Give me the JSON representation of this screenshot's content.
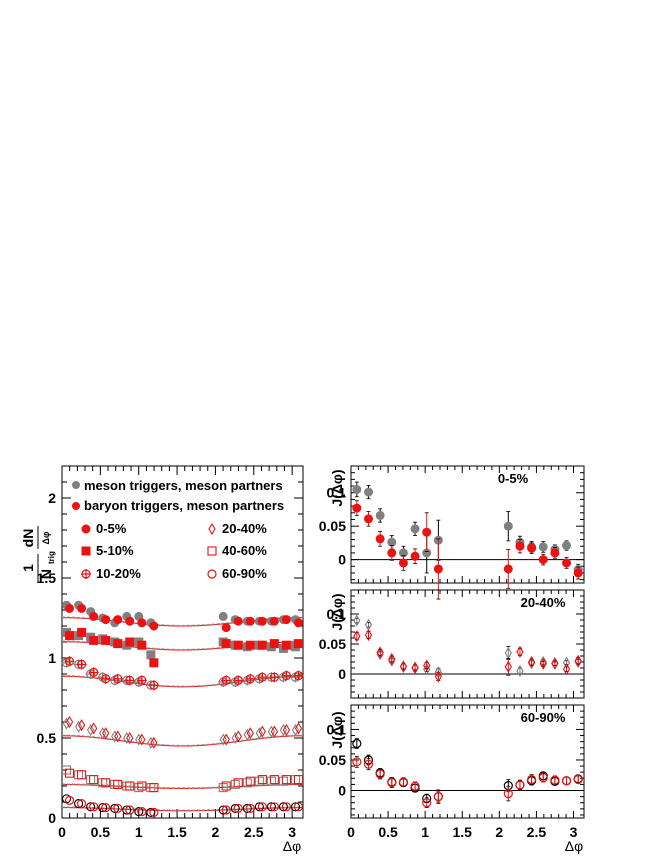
{
  "colors": {
    "red": "#ee1111",
    "gray": "#808080",
    "black": "#000000",
    "curve_red": "#e02020",
    "curve_gray": "#999999"
  },
  "chart_data": [
    {
      "id": "left",
      "type": "scatter",
      "title": "",
      "xlabel": "Δφ",
      "ylabel": "1/N_trig dN/dΔφ",
      "ylabel_parts": {
        "one": "1",
        "N": "N",
        "trig": "trig",
        "dN": "dN",
        "dphi": "Δφ"
      },
      "xlim": [
        0,
        3.14159
      ],
      "ylim": [
        0,
        2.2
      ],
      "xticks": [
        0,
        0.5,
        1,
        1.5,
        2,
        2.5,
        3
      ],
      "xtick_labels": [
        "0",
        "0.5",
        "1",
        "1.5",
        "2",
        "2.5",
        "3"
      ],
      "yticks": [
        0,
        0.5,
        1,
        1.5,
        2
      ],
      "ytick_labels": [
        "0",
        "0.5",
        "1",
        "1.5",
        "2"
      ],
      "legend_top": [
        {
          "label": "meson triggers, meson partners",
          "color": "#808080",
          "marker": "circle"
        },
        {
          "label": "baryon triggers, meson partners",
          "color": "#ee1111",
          "marker": "circle"
        }
      ],
      "legend_bottom": [
        {
          "label": "0-5%",
          "marker": "circle-filled"
        },
        {
          "label": "5-10%",
          "marker": "square-filled"
        },
        {
          "label": "10-20%",
          "marker": "cross-circle"
        },
        {
          "label": "20-40%",
          "marker": "diamond-open"
        },
        {
          "label": "40-60%",
          "marker": "square-open"
        },
        {
          "label": "60-90%",
          "marker": "circle-open"
        }
      ],
      "x": [
        0.0785,
        0.236,
        0.393,
        0.55,
        0.707,
        0.864,
        1.021,
        1.178,
        2.121,
        2.278,
        2.435,
        2.592,
        2.749,
        2.906,
        3.063
      ],
      "series": [
        {
          "name": "0-5%",
          "marker": "circle-filled",
          "baryon": [
            1.31,
            1.31,
            1.26,
            1.24,
            1.24,
            1.23,
            1.22,
            1.2,
            1.19,
            1.23,
            1.23,
            1.23,
            1.23,
            1.24,
            1.22
          ],
          "meson": [
            1.33,
            1.33,
            1.29,
            1.25,
            1.22,
            1.26,
            1.26,
            1.22,
            1.26,
            1.24,
            1.23,
            1.23,
            1.23,
            1.24,
            1.24
          ],
          "curve": {
            "base": 1.2,
            "amp": 0.026,
            "shift": 0.004
          }
        },
        {
          "name": "5-10%",
          "marker": "square-filled",
          "baryon": [
            1.14,
            1.16,
            1.11,
            1.11,
            1.09,
            1.1,
            1.08,
            0.97,
            1.09,
            1.08,
            1.08,
            1.08,
            1.09,
            1.08,
            1.09
          ],
          "meson": [
            1.16,
            1.14,
            1.13,
            1.12,
            1.1,
            1.08,
            1.1,
            1.02,
            1.1,
            1.08,
            1.07,
            1.08,
            1.07,
            1.06,
            1.07
          ],
          "curve": {
            "base": 1.05,
            "amp": 0.026,
            "shift": 0.004
          }
        },
        {
          "name": "10-20%",
          "marker": "cross-circle",
          "baryon": [
            0.98,
            0.96,
            0.91,
            0.87,
            0.87,
            0.86,
            0.86,
            0.83,
            0.86,
            0.86,
            0.87,
            0.88,
            0.88,
            0.89,
            0.89
          ],
          "meson": [
            0.97,
            0.96,
            0.9,
            0.88,
            0.86,
            0.86,
            0.85,
            0.83,
            0.85,
            0.85,
            0.86,
            0.87,
            0.88,
            0.88,
            0.88
          ],
          "curve": {
            "base": 0.82,
            "amp": 0.033,
            "shift": 0.004
          }
        },
        {
          "name": "20-40%",
          "marker": "diamond-open",
          "baryon": [
            0.6,
            0.58,
            0.56,
            0.53,
            0.51,
            0.5,
            0.49,
            0.47,
            0.49,
            0.51,
            0.53,
            0.54,
            0.54,
            0.55,
            0.56
          ],
          "meson": [
            0.59,
            0.57,
            0.55,
            0.53,
            0.51,
            0.5,
            0.49,
            0.47,
            0.49,
            0.5,
            0.52,
            0.53,
            0.54,
            0.55,
            0.55
          ],
          "curve": {
            "base": 0.45,
            "amp": 0.032,
            "shift": 0.004
          }
        },
        {
          "name": "40-60%",
          "marker": "square-open",
          "baryon": [
            0.28,
            0.27,
            0.24,
            0.22,
            0.21,
            0.2,
            0.2,
            0.19,
            0.2,
            0.22,
            0.23,
            0.24,
            0.24,
            0.24,
            0.24
          ],
          "meson": [
            0.3,
            0.27,
            0.24,
            0.22,
            0.21,
            0.2,
            0.19,
            0.19,
            0.19,
            0.21,
            0.22,
            0.23,
            0.23,
            0.23,
            0.24
          ],
          "curve": {
            "base": 0.185,
            "amp": 0.012,
            "shift": 0.004
          }
        },
        {
          "name": "60-90%",
          "marker": "circle-open",
          "baryon": [
            0.11,
            0.09,
            0.07,
            0.065,
            0.06,
            0.05,
            0.04,
            0.035,
            0.05,
            0.06,
            0.06,
            0.07,
            0.07,
            0.07,
            0.07
          ],
          "meson": [
            0.12,
            0.09,
            0.07,
            0.065,
            0.06,
            0.05,
            0.04,
            0.035,
            0.05,
            0.06,
            0.06,
            0.07,
            0.07,
            0.07,
            0.07
          ],
          "curve": {
            "base": 0.045,
            "amp": 0.01,
            "shift": 0.004
          }
        }
      ]
    },
    {
      "id": "right-top",
      "type": "scatter",
      "panel_label": "0-5%",
      "ylabel": "J(Δφ)",
      "xlim": [
        0,
        3.14159
      ],
      "ylim": [
        -0.04,
        0.14
      ],
      "yticks": [
        0,
        0.05,
        0.1
      ],
      "ytick_labels": [
        "0",
        "0.05",
        "0.1"
      ],
      "marker": "filled",
      "x": [
        0.0785,
        0.236,
        0.393,
        0.55,
        0.707,
        0.864,
        1.021,
        1.178,
        2.121,
        2.278,
        2.435,
        2.592,
        2.749,
        2.906,
        3.063
      ],
      "baryon": [
        0.077,
        0.061,
        0.031,
        0.01,
        -0.005,
        0.005,
        0.041,
        -0.014,
        -0.014,
        0.02,
        0.017,
        0.0,
        0.01,
        -0.005,
        -0.02
      ],
      "baryon_err": [
        0.011,
        0.011,
        0.011,
        0.011,
        0.011,
        0.011,
        0.029,
        0.045,
        0.029,
        0.01,
        0.008,
        0.008,
        0.008,
        0.008,
        0.009
      ],
      "meson": [
        0.105,
        0.101,
        0.066,
        0.026,
        0.01,
        0.046,
        0.01,
        0.029,
        0.05,
        0.026,
        0.019,
        0.019,
        0.015,
        0.021,
        -0.015
      ],
      "meson_err": [
        0.011,
        0.01,
        0.01,
        0.01,
        0.01,
        0.01,
        0.03,
        0.03,
        0.022,
        0.009,
        0.008,
        0.008,
        0.007,
        0.007,
        0.008
      ]
    },
    {
      "id": "right-mid",
      "type": "scatter",
      "panel_label": "20-40%",
      "ylabel": "J(Δφ)",
      "xlim": [
        0,
        3.14159
      ],
      "ylim": [
        -0.04,
        0.14
      ],
      "yticks": [
        0,
        0.05,
        0.1
      ],
      "ytick_labels": [
        "0",
        "0.05",
        "0.1"
      ],
      "marker": "diamond",
      "x": [
        0.0785,
        0.236,
        0.393,
        0.55,
        0.707,
        0.864,
        1.021,
        1.178,
        2.121,
        2.278,
        2.435,
        2.592,
        2.749,
        2.906,
        3.063
      ],
      "baryon": [
        0.063,
        0.065,
        0.036,
        0.025,
        0.012,
        0.01,
        0.014,
        -0.004,
        0.012,
        0.037,
        0.02,
        0.017,
        0.018,
        0.008,
        0.022
      ],
      "baryon_err": [
        0.006,
        0.006,
        0.005,
        0.005,
        0.005,
        0.005,
        0.005,
        0.007,
        0.014,
        0.006,
        0.005,
        0.004,
        0.004,
        0.004,
        0.005
      ],
      "meson": [
        0.089,
        0.082,
        0.033,
        0.022,
        0.013,
        0.011,
        0.008,
        0.003,
        0.035,
        0.005,
        0.018,
        0.02,
        0.017,
        0.019,
        0.02
      ],
      "meson_err": [
        0.004,
        0.004,
        0.004,
        0.004,
        0.004,
        0.004,
        0.004,
        0.006,
        0.011,
        0.005,
        0.004,
        0.004,
        0.003,
        0.003,
        0.004
      ]
    },
    {
      "id": "right-bottom",
      "type": "scatter",
      "panel_label": "60-90%",
      "ylabel": "J(Δφ)",
      "xlabel": "Δφ",
      "xlim": [
        0,
        3.14159
      ],
      "ylim": [
        -0.04,
        0.14
      ],
      "xticks": [
        0,
        0.5,
        1,
        1.5,
        2,
        2.5,
        3
      ],
      "xtick_labels": [
        "0",
        "0.5",
        "1",
        "1.5",
        "2",
        "2.5",
        "3"
      ],
      "yticks": [
        0,
        0.05,
        0.1
      ],
      "ytick_labels": [
        "0",
        "0.05",
        "0.1"
      ],
      "marker": "circle-open",
      "x": [
        0.0785,
        0.236,
        0.393,
        0.55,
        0.707,
        0.864,
        1.021,
        1.178,
        2.121,
        2.278,
        2.435,
        2.592,
        2.749,
        2.906,
        3.063
      ],
      "baryon": [
        0.047,
        0.043,
        0.027,
        0.013,
        0.014,
        0.007,
        -0.02,
        -0.01,
        -0.005,
        0.009,
        0.018,
        0.021,
        0.017,
        0.016,
        0.018
      ],
      "baryon_err": [
        0.009,
        0.009,
        0.008,
        0.008,
        0.007,
        0.007,
        0.008,
        0.011,
        0.012,
        0.008,
        0.008,
        0.007,
        0.007,
        0.006,
        0.006
      ],
      "meson": [
        0.077,
        0.05,
        0.029,
        0.014,
        0.013,
        0.004,
        -0.013,
        -0.01,
        0.008,
        0.009,
        0.016,
        0.024,
        0.015,
        0.016,
        0.019
      ],
      "meson_err": [
        0.008,
        0.008,
        0.007,
        0.007,
        0.006,
        0.006,
        0.007,
        0.009,
        0.01,
        0.007,
        0.007,
        0.006,
        0.006,
        0.006,
        0.006
      ]
    }
  ]
}
